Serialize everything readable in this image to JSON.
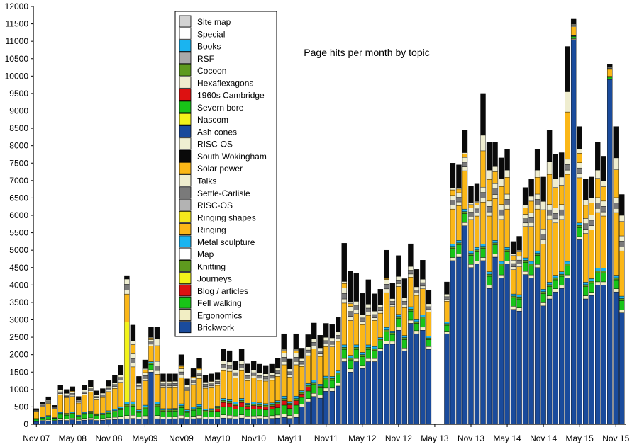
{
  "chart_data": {
    "type": "bar",
    "stacked": true,
    "title": "Page hits per month by topic",
    "xlabel": "",
    "ylabel": "",
    "ylim": [
      0,
      12000
    ],
    "yticks": [
      0,
      500,
      1000,
      1500,
      2000,
      2500,
      3000,
      3500,
      4000,
      4500,
      5000,
      5500,
      6000,
      6500,
      7000,
      7500,
      8000,
      8500,
      9000,
      9500,
      10000,
      10500,
      11000,
      11500,
      12000
    ],
    "grid": false,
    "legend_position": "top-left",
    "xtick_labels": [
      "Nov 07",
      "May 08",
      "Nov 08",
      "May09",
      "Nov09",
      "May10",
      "Nov10",
      "May11",
      "Nov11",
      "May 12",
      "Nov 12",
      "May 13",
      "Nov 13",
      "May 14",
      "Nov 14",
      "May 15",
      "Nov 15"
    ],
    "xtick_months": [
      0,
      6,
      12,
      18,
      24,
      30,
      36,
      42,
      48,
      54,
      60,
      66,
      72,
      78,
      84,
      90,
      96
    ],
    "missing_months": [
      67
    ],
    "series": [
      {
        "name": "Brickwork",
        "color": "#1a4b9c"
      },
      {
        "name": "Ergonomics",
        "color": "#f2eec4"
      },
      {
        "name": "Fell walking",
        "color": "#18c418"
      },
      {
        "name": "Blog / articles",
        "color": "#dd1111"
      },
      {
        "name": "Journeys",
        "color": "#f2f21a"
      },
      {
        "name": "Knitting",
        "color": "#5e9a1e"
      },
      {
        "name": "Map",
        "color": "#ffffff"
      },
      {
        "name": "Metal sculpture",
        "color": "#1ab4f0"
      },
      {
        "name": "Ringing",
        "color": "#fbb717"
      },
      {
        "name": "Ringing shapes",
        "color": "#f4e81c"
      },
      {
        "name": "RISC-OS",
        "color": "#b3b3b3"
      },
      {
        "name": "Settle-Carlisle",
        "color": "#7a7a7a"
      },
      {
        "name": "Talks",
        "color": "#efedcf"
      },
      {
        "name": "Solar power",
        "color": "#fbb717"
      },
      {
        "name": "South Wokingham",
        "color": "#0a0a0a"
      },
      {
        "name": "RISC-OS",
        "color": "#efefd2"
      },
      {
        "name": "Ash cones",
        "color": "#1a4b9c"
      },
      {
        "name": "Nascom",
        "color": "#f2f21a"
      },
      {
        "name": "Severn bore",
        "color": "#18c418"
      },
      {
        "name": "1960s Cambridge",
        "color": "#dd1111"
      },
      {
        "name": "Hexaflexagons",
        "color": "#efedcf"
      },
      {
        "name": "Cocoon",
        "color": "#5e9a1e"
      },
      {
        "name": "RSF",
        "color": "#a9a9a9"
      },
      {
        "name": "Books",
        "color": "#1ab4f0"
      },
      {
        "name": "Special",
        "color": "#ffffff"
      },
      {
        "name": "Site map",
        "color": "#d3d3d3"
      }
    ],
    "months": [
      {
        "total": 450,
        "brick": 80,
        "ringing": 200,
        "black": 30
      },
      {
        "total": 600,
        "brick": 90,
        "ringing": 300,
        "black": 60
      },
      {
        "total": 750,
        "brick": 100,
        "ringing": 350,
        "black": 100
      },
      {
        "total": 530,
        "brick": 90,
        "ringing": 250,
        "black": 40
      },
      {
        "total": 1100,
        "brick": 120,
        "ringing": 500,
        "black": 150
      },
      {
        "total": 1000,
        "brick": 110,
        "ringing": 450,
        "black": 100
      },
      {
        "total": 1080,
        "brick": 130,
        "ringing": 450,
        "black": 120
      },
      {
        "total": 800,
        "brick": 100,
        "ringing": 350,
        "black": 80
      },
      {
        "total": 1100,
        "brick": 120,
        "ringing": 500,
        "black": 150
      },
      {
        "total": 1200,
        "brick": 130,
        "ringing": 550,
        "black": 180
      },
      {
        "total": 950,
        "brick": 110,
        "ringing": 420,
        "black": 120
      },
      {
        "total": 1000,
        "brick": 120,
        "ringing": 450,
        "black": 130
      },
      {
        "total": 1250,
        "brick": 130,
        "ringing": 550,
        "black": 160
      },
      {
        "total": 1400,
        "brick": 140,
        "ringing": 600,
        "black": 200
      },
      {
        "total": 1700,
        "brick": 150,
        "ringing": 700,
        "black": 280
      },
      {
        "total": 4100,
        "brick": 160,
        "ringing": 800,
        "black": 100,
        "journeys": 2300
      },
      {
        "total": 2850,
        "brick": 170,
        "ringing": 1000,
        "black": 450
      },
      {
        "total": 1300,
        "brick": 150,
        "ringing": 600,
        "black": 200
      },
      {
        "total": 1850,
        "brick": 160,
        "ringing": 700,
        "black": 250
      },
      {
        "total": 2800,
        "brick": 1500,
        "ringing": 450,
        "black": 300
      },
      {
        "total": 2800,
        "brick": 160,
        "ringing": 800,
        "black": 350
      },
      {
        "total": 1450,
        "brick": 150,
        "ringing": 600,
        "black": 200
      },
      {
        "total": 1450,
        "brick": 150,
        "ringing": 600,
        "black": 200
      },
      {
        "total": 1450,
        "brick": 160,
        "ringing": 600,
        "black": 200
      },
      {
        "total": 2000,
        "brick": 170,
        "ringing": 750,
        "black": 300
      },
      {
        "total": 1300,
        "brick": 150,
        "ringing": 550,
        "black": 180
      },
      {
        "total": 1600,
        "brick": 160,
        "ringing": 650,
        "black": 220
      },
      {
        "total": 1900,
        "brick": 170,
        "ringing": 750,
        "black": 280
      },
      {
        "total": 1400,
        "brick": 150,
        "ringing": 600,
        "black": 200
      },
      {
        "total": 1450,
        "brick": 150,
        "ringing": 600,
        "black": 200
      },
      {
        "total": 1400,
        "brick": 160,
        "ringing": 600,
        "black": 200
      },
      {
        "total": 2150,
        "brick": 180,
        "ringing": 800,
        "black": 350
      },
      {
        "total": 2100,
        "brick": 170,
        "ringing": 800,
        "black": 320
      },
      {
        "total": 1800,
        "brick": 160,
        "ringing": 700,
        "black": 260
      },
      {
        "total": 2150,
        "brick": 180,
        "ringing": 800,
        "black": 350
      },
      {
        "total": 1700,
        "brick": 160,
        "ringing": 650,
        "black": 260
      },
      {
        "total": 1800,
        "brick": 160,
        "ringing": 700,
        "black": 260
      },
      {
        "total": 1700,
        "brick": 170,
        "ringing": 650,
        "black": 250
      },
      {
        "total": 1650,
        "brick": 160,
        "ringing": 650,
        "black": 240
      },
      {
        "total": 1700,
        "brick": 170,
        "ringing": 650,
        "black": 250
      },
      {
        "total": 1900,
        "brick": 180,
        "ringing": 700,
        "black": 280
      },
      {
        "total": 2600,
        "brick": 200,
        "ringing": 900,
        "black": 450
      },
      {
        "total": 1850,
        "brick": 170,
        "ringing": 700,
        "black": 280
      },
      {
        "total": 2600,
        "brick": 200,
        "ringing": 900,
        "black": 450
      },
      {
        "total": 2100,
        "brick": 500,
        "ringing": 700,
        "black": 300
      },
      {
        "total": 2450,
        "brick": 650,
        "ringing": 800,
        "black": 350
      },
      {
        "total": 2900,
        "brick": 800,
        "ringing": 900,
        "black": 450
      },
      {
        "total": 2500,
        "brick": 750,
        "ringing": 800,
        "black": 360
      },
      {
        "total": 2850,
        "brick": 950,
        "ringing": 850,
        "black": 400
      },
      {
        "total": 2800,
        "brick": 950,
        "ringing": 850,
        "black": 380
      },
      {
        "total": 3000,
        "brick": 1100,
        "ringing": 850,
        "black": 420
      },
      {
        "total": 5200,
        "brick": 1800,
        "ringing": 1200,
        "black": 1100
      },
      {
        "total": 4400,
        "brick": 1500,
        "ringing": 1000,
        "black": 900
      },
      {
        "total": 4300,
        "brick": 1800,
        "ringing": 900,
        "black": 800
      },
      {
        "total": 3700,
        "brick": 1600,
        "ringing": 800,
        "black": 600
      },
      {
        "total": 4100,
        "brick": 1800,
        "ringing": 850,
        "black": 700
      },
      {
        "total": 3700,
        "brick": 1800,
        "ringing": 750,
        "black": 500
      },
      {
        "total": 3800,
        "brick": 2100,
        "ringing": 700,
        "black": 450
      },
      {
        "total": 5000,
        "brick": 2300,
        "ringing": 1000,
        "black": 800
      },
      {
        "total": 3950,
        "brick": 2300,
        "ringing": 700,
        "black": 450
      },
      {
        "total": 4750,
        "brick": 2700,
        "ringing": 800,
        "black": 600
      },
      {
        "total": 4100,
        "brick": 2100,
        "ringing": 800,
        "black": 550
      },
      {
        "total": 5100,
        "brick": 2900,
        "ringing": 850,
        "black": 650
      },
      {
        "total": 4350,
        "brick": 2600,
        "ringing": 700,
        "black": 500
      },
      {
        "total": 4650,
        "brick": 2700,
        "ringing": 750,
        "black": 550
      },
      {
        "total": 3800,
        "brick": 2150,
        "ringing": 700,
        "black": 400
      },
      {
        "total": 0,
        "brick": 0,
        "ringing": 0,
        "black": 0
      },
      {
        "total": 0,
        "brick": 0,
        "ringing": 0,
        "black": 0
      },
      {
        "total": 4050,
        "brick": 2600,
        "ringing": 600,
        "black": 350
      },
      {
        "total": 7500,
        "brick": 4700,
        "ringing": 1000,
        "black": 700
      },
      {
        "total": 7450,
        "brick": 4800,
        "ringing": 1000,
        "black": 650
      },
      {
        "total": 8450,
        "brick": 5700,
        "ringing": 1100,
        "black": 650
      },
      {
        "total": 6850,
        "brick": 4500,
        "ringing": 900,
        "black": 500
      },
      {
        "total": 6900,
        "brick": 4600,
        "ringing": 900,
        "black": 500
      },
      {
        "total": 9500,
        "brick": 4700,
        "ringing": 1200,
        "black": 1200
      },
      {
        "total": 8100,
        "brick": 3900,
        "ringing": 1600,
        "black": 800
      },
      {
        "total": 8100,
        "brick": 4800,
        "ringing": 1200,
        "black": 700
      },
      {
        "total": 7650,
        "brick": 4200,
        "ringing": 1200,
        "black": 600
      },
      {
        "total": 7900,
        "brick": 4600,
        "ringing": 1100,
        "black": 600
      },
      {
        "total": 5250,
        "brick": 3300,
        "ringing": 700,
        "black": 350
      },
      {
        "total": 5400,
        "brick": 3250,
        "ringing": 800,
        "black": 400
      },
      {
        "total": 6800,
        "brick": 4300,
        "ringing": 900,
        "black": 500
      },
      {
        "total": 7050,
        "brick": 4200,
        "ringing": 1000,
        "black": 500
      },
      {
        "total": 7900,
        "brick": 4500,
        "ringing": 1200,
        "black": 600
      },
      {
        "total": 7100,
        "brick": 3400,
        "ringing": 1300,
        "black": 700
      },
      {
        "total": 8450,
        "brick": 3600,
        "ringing": 1800,
        "black": 900
      },
      {
        "total": 7750,
        "brick": 3800,
        "ringing": 1500,
        "black": 700
      },
      {
        "total": 7800,
        "brick": 3900,
        "ringing": 1500,
        "black": 700
      },
      {
        "total": 10850,
        "brick": 4200,
        "ringing": 2500,
        "black": 1300
      },
      {
        "total": 11550,
        "brick": 11050,
        "ringing": 250,
        "black": 150
      },
      {
        "total": 8550,
        "brick": 5300,
        "ringing": 1300,
        "black": 650
      },
      {
        "total": 7050,
        "brick": 3600,
        "ringing": 1400,
        "black": 600
      },
      {
        "total": 7100,
        "brick": 3700,
        "ringing": 1400,
        "black": 600
      },
      {
        "total": 8100,
        "brick": 4000,
        "ringing": 1600,
        "black": 800
      },
      {
        "total": 7700,
        "brick": 4000,
        "ringing": 1500,
        "black": 700
      },
      {
        "total": 10300,
        "brick": 9900,
        "ringing": 200,
        "black": 100
      },
      {
        "total": 8550,
        "brick": 3800,
        "ringing": 1800,
        "black": 900
      },
      {
        "total": 6600,
        "brick": 3200,
        "ringing": 1300,
        "black": 600
      }
    ]
  }
}
